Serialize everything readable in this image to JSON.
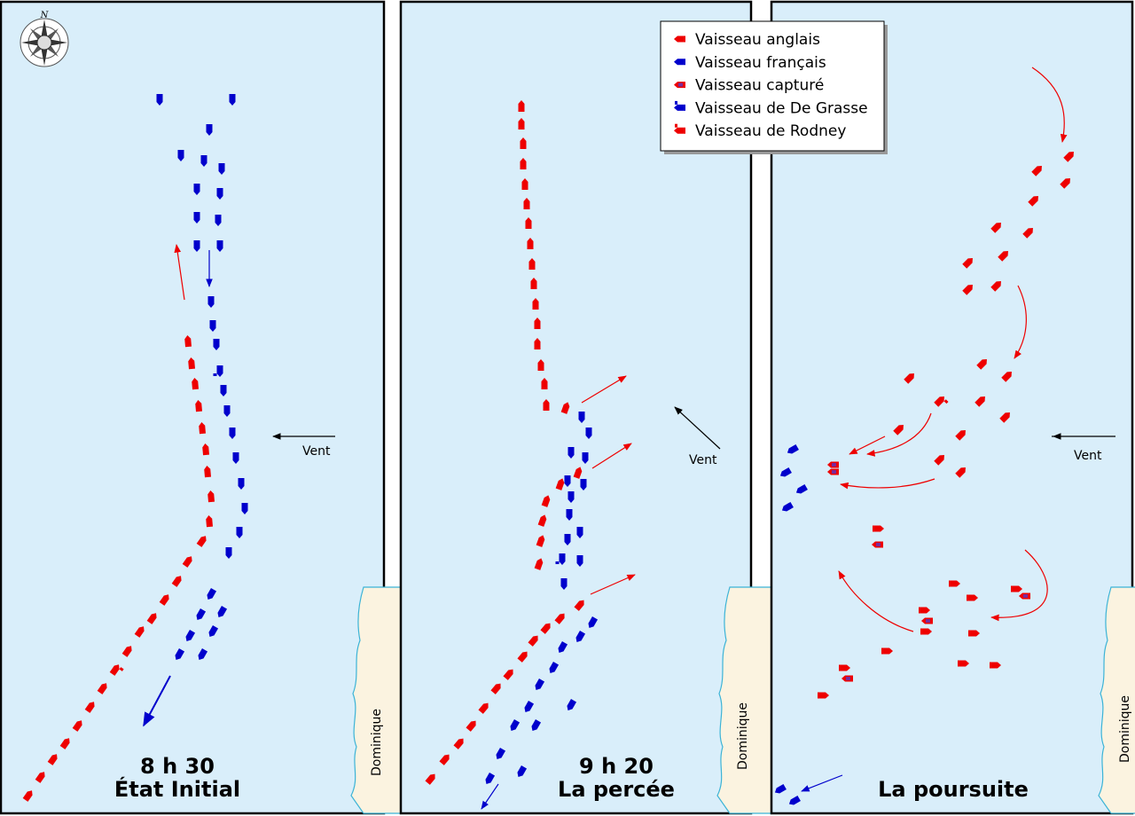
{
  "compass": {
    "north": "N"
  },
  "panels": [
    {
      "time": "8 h 30",
      "title": "État Initial",
      "wind_label": "Vent",
      "island_label": "Dominique"
    },
    {
      "time": "9 h 20",
      "title": "La percée",
      "wind_label": "Vent",
      "island_label": "Dominique"
    },
    {
      "title": "La poursuite",
      "wind_label": "Vent",
      "island_label": "Dominique"
    }
  ],
  "legend": [
    "Vaisseau anglais",
    "Vaisseau français",
    "Vaisseau capturé",
    "Vaisseau de De Grasse",
    "Vaisseau de Rodney"
  ]
}
